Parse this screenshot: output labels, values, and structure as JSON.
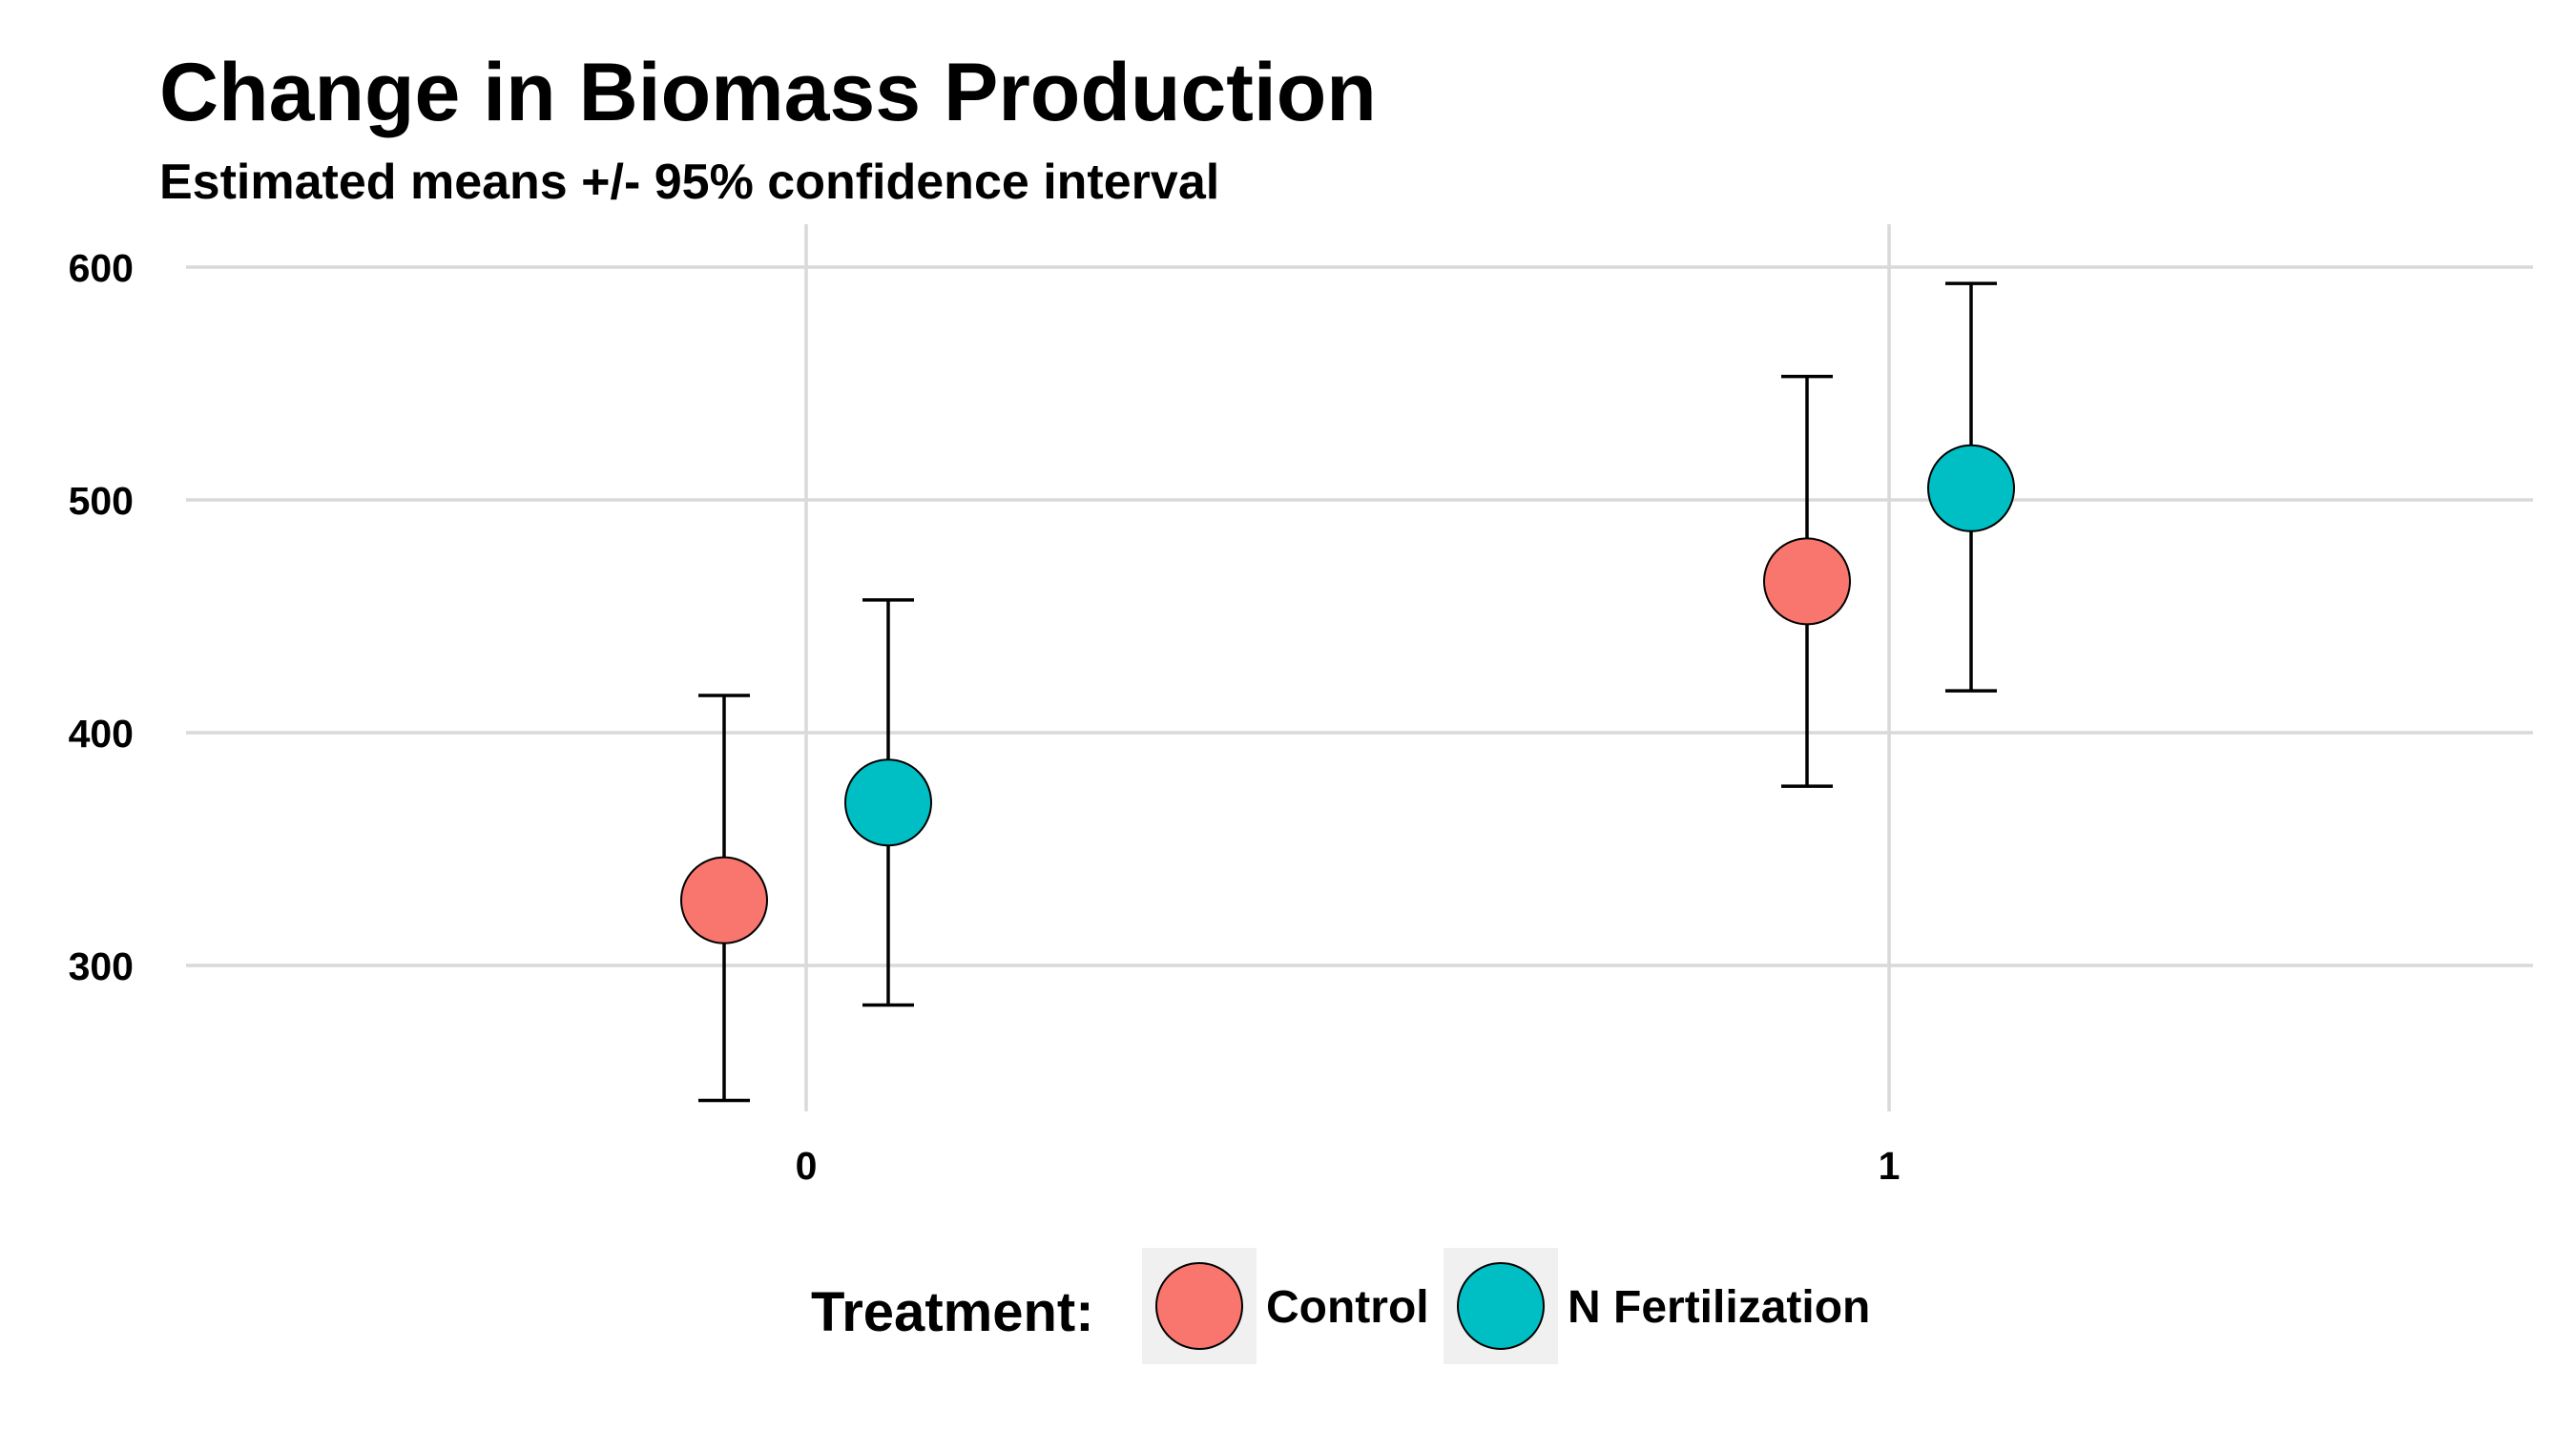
{
  "chart_data": {
    "type": "scatter",
    "title": "Change in Biomass Production",
    "subtitle": "Estimated means +/- 95% confidence interval",
    "xlabel": "",
    "ylabel": "",
    "x_categories": [
      "0",
      "1"
    ],
    "ylim": [
      213,
      630
    ],
    "y_ticks": [
      300,
      400,
      500,
      600
    ],
    "grid": true,
    "legend": {
      "title": "Treatment:",
      "placement": "bottom"
    },
    "series": [
      {
        "name": "Control",
        "color": "#F8766D",
        "points": [
          {
            "x": "0",
            "y": 328,
            "lower": 242,
            "upper": 416
          },
          {
            "x": "1",
            "y": 465,
            "lower": 377,
            "upper": 553
          }
        ]
      },
      {
        "name": "N Fertilization",
        "color": "#00BFC4",
        "points": [
          {
            "x": "0",
            "y": 370,
            "lower": 283,
            "upper": 457
          },
          {
            "x": "1",
            "y": 505,
            "lower": 418,
            "upper": 593
          }
        ]
      }
    ]
  }
}
